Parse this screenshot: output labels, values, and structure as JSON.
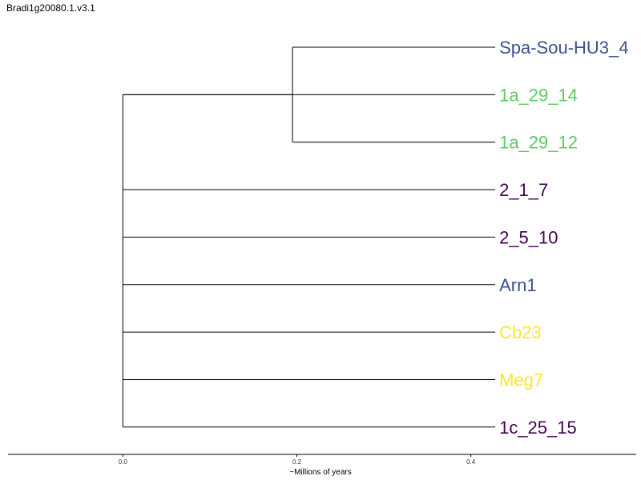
{
  "chart_data": {
    "type": "dendrogram",
    "title": "Bradi1g20080.1.v3.1",
    "xlabel": "~Millions of years",
    "xlim": [
      -0.132,
      0.59
    ],
    "x_ticks": [
      {
        "value": 0.0,
        "label": "0.0"
      },
      {
        "value": 0.2,
        "label": "0.2"
      },
      {
        "value": 0.4,
        "label": "0.4"
      }
    ],
    "tips": [
      {
        "name": "Spa-Sou-HU3_4",
        "color": "#3b528b"
      },
      {
        "name": "1a_29_14",
        "color": "#5ec962"
      },
      {
        "name": "1a_29_12",
        "color": "#5ec962"
      },
      {
        "name": "2_1_7",
        "color": "#440154"
      },
      {
        "name": "2_5_10",
        "color": "#440154"
      },
      {
        "name": "Arn1",
        "color": "#3b528b"
      },
      {
        "name": "Cb23",
        "color": "#fde725"
      },
      {
        "name": "Meg7",
        "color": "#fde725"
      },
      {
        "name": "1c_25_15",
        "color": "#440154"
      }
    ],
    "tip_depth": 0.428,
    "nodes": [
      {
        "id": "root",
        "depth": 0.0,
        "children": [
          "n2",
          "t3",
          "t4",
          "t5",
          "t6",
          "t7",
          "t8"
        ]
      },
      {
        "id": "n2",
        "depth": 0.0,
        "children": [
          "n1",
          "t1"
        ]
      },
      {
        "id": "n1",
        "depth": 0.195,
        "children": [
          "t0",
          "t2"
        ]
      }
    ],
    "grid": false,
    "legend": "none"
  }
}
